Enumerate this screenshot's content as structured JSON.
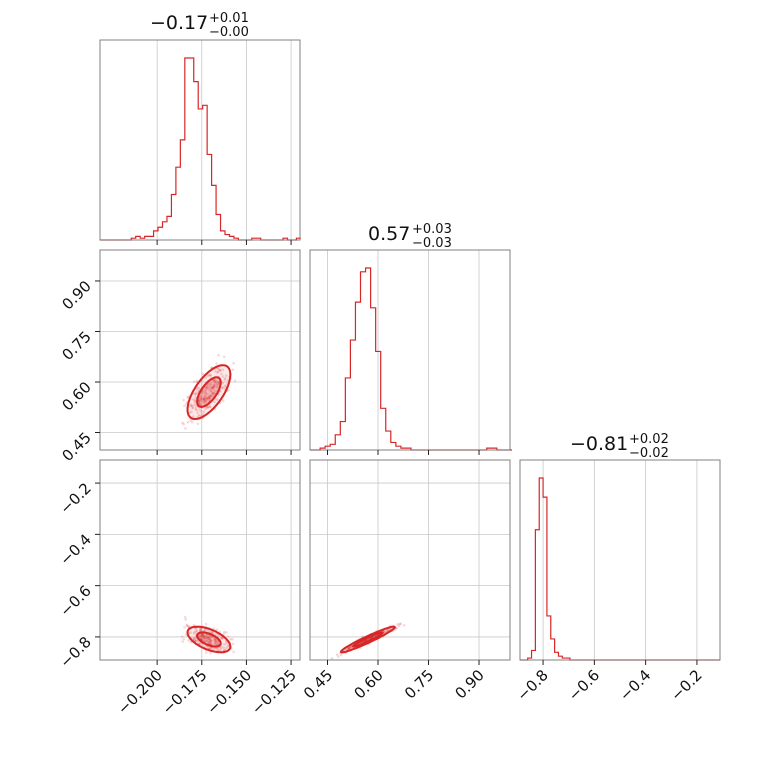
{
  "chart_data": {
    "type": "corner",
    "parameters": [
      {
        "title": {
          "median": "−0.17",
          "plus": "+0.01",
          "minus": "−0.00"
        },
        "xlim": [
          -0.232,
          -0.12
        ],
        "ticks": [
          -0.2,
          -0.175,
          -0.15,
          -0.125
        ],
        "tick_labels": [
          "−0.200",
          "−0.175",
          "−0.150",
          "−0.125"
        ],
        "hist": {
          "bin_width": 0.0025,
          "counts": [
            0,
            0,
            0,
            0,
            0,
            0,
            0,
            1,
            2,
            1,
            2,
            2,
            5,
            7,
            10,
            13,
            25,
            40,
            55,
            100,
            100,
            87,
            72,
            74,
            47,
            30,
            14,
            5,
            3,
            2,
            1,
            0,
            0,
            0,
            1,
            1,
            0,
            0,
            0,
            0,
            0,
            1,
            0,
            0,
            1
          ]
        }
      },
      {
        "title": {
          "median": "0.57",
          "plus": "+0.03",
          "minus": "−0.03"
        },
        "xlim": [
          0.398,
          0.992
        ],
        "ticks": [
          0.45,
          0.6,
          0.75,
          0.9
        ],
        "tick_labels": [
          "0.45",
          "0.60",
          "0.75",
          "0.90"
        ],
        "hist": {
          "bin_width": 0.015,
          "counts": [
            0,
            0,
            1,
            2,
            3,
            8,
            15,
            38,
            58,
            78,
            94,
            96,
            75,
            52,
            22,
            10,
            4,
            2,
            1,
            1,
            0,
            0,
            0,
            0,
            0,
            0,
            0,
            0,
            0,
            0,
            0,
            0,
            0,
            0,
            0,
            1,
            1,
            0,
            0,
            0
          ]
        }
      },
      {
        "title": {
          "median": "−0.81",
          "plus": "+0.02",
          "minus": "−0.02"
        },
        "xlim": [
          -0.89,
          -0.11
        ],
        "ticks": [
          -0.8,
          -0.6,
          -0.4,
          -0.2
        ],
        "tick_labels": [
          "−0.8",
          "−0.6",
          "−0.4",
          "−0.2"
        ],
        "y_tick_labels": [
          "−0.2",
          "−0.4",
          "−0.6",
          "−0.8"
        ],
        "hist": {
          "bin_width": 0.015,
          "counts": [
            0,
            0,
            1,
            5,
            68,
            95,
            85,
            23,
            11,
            4,
            2,
            1,
            1,
            0,
            0,
            0,
            0,
            0,
            0,
            0,
            0,
            0,
            0,
            0,
            0,
            0,
            0,
            0,
            0,
            0,
            0,
            0,
            0,
            0,
            0,
            0,
            0,
            0,
            0,
            0,
            0,
            0,
            0,
            0,
            0,
            0,
            0,
            0,
            0,
            0,
            0,
            0
          ]
        }
      }
    ],
    "y_tick_labels_row1": [
      "0.90",
      "0.75",
      "0.60",
      "0.45"
    ],
    "color": "#d62728",
    "grid": true
  }
}
